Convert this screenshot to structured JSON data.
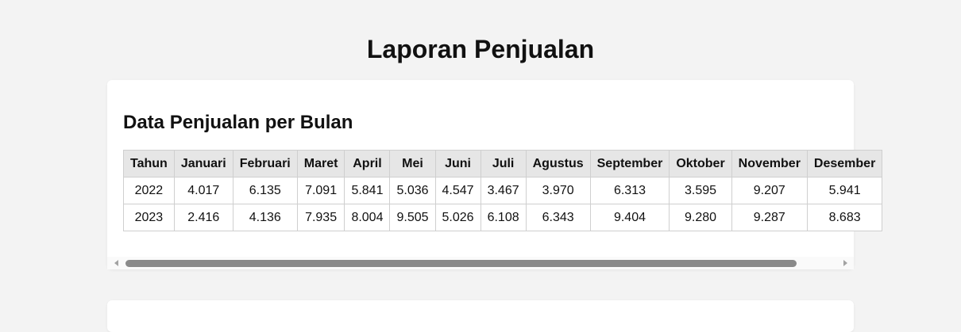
{
  "page": {
    "title": "Laporan Penjualan"
  },
  "section": {
    "title": "Data Penjualan per Bulan"
  },
  "table": {
    "headers": [
      "Tahun",
      "Januari",
      "Februari",
      "Maret",
      "April",
      "Mei",
      "Juni",
      "Juli",
      "Agustus",
      "September",
      "Oktober",
      "November",
      "Desember"
    ],
    "rows": [
      [
        "2022",
        "4.017",
        "6.135",
        "7.091",
        "5.841",
        "5.036",
        "4.547",
        "3.467",
        "3.970",
        "6.313",
        "3.595",
        "9.207",
        "5.941"
      ],
      [
        "2023",
        "2.416",
        "4.136",
        "7.935",
        "8.004",
        "9.505",
        "5.026",
        "6.108",
        "6.343",
        "9.404",
        "9.280",
        "9.287",
        "8.683"
      ]
    ]
  },
  "scrollbar": {
    "position": 0
  }
}
